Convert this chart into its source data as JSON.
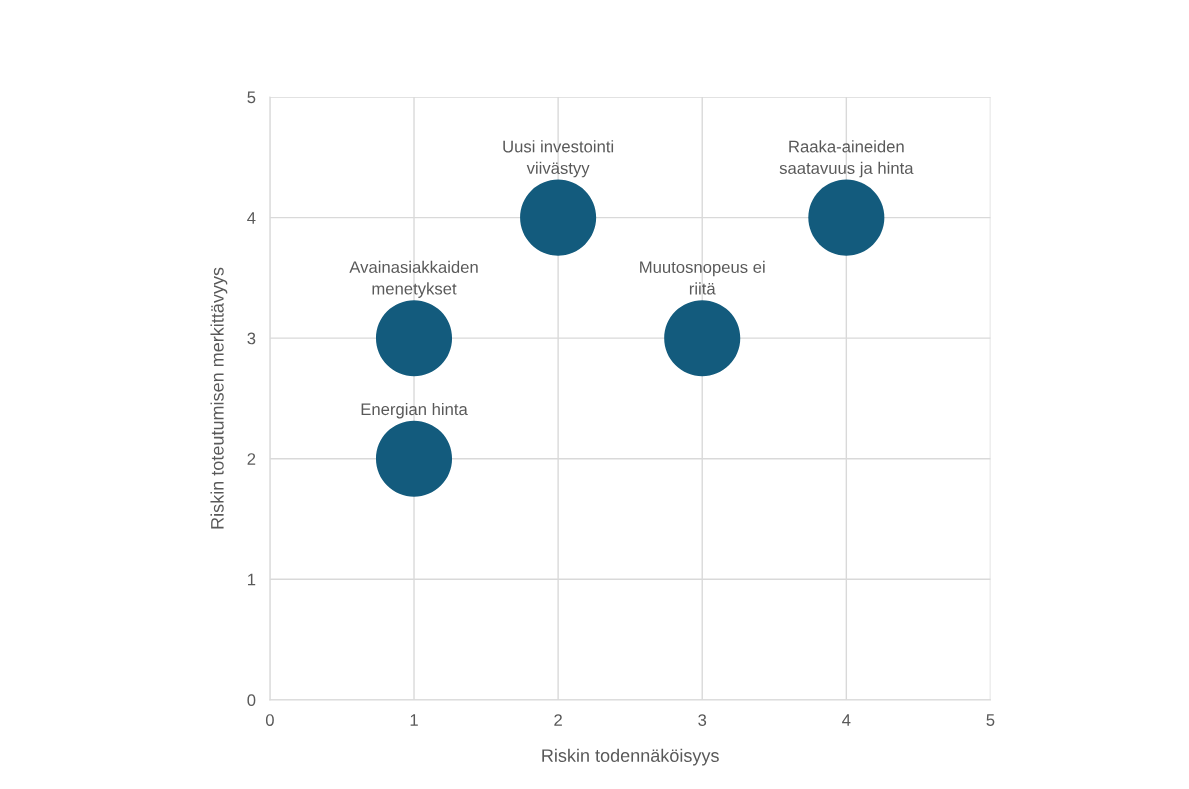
{
  "chart_data": {
    "type": "bubble",
    "xlabel": "Riskin todennäköisyys",
    "ylabel": "Riskin toteutumisen merkittävyys",
    "x": [
      1,
      1,
      2,
      3,
      4
    ],
    "values": [
      3,
      2,
      4,
      3,
      4
    ],
    "sizes": [
      1,
      1,
      1,
      1,
      1
    ],
    "color": "#135b7d",
    "xlim": [
      0,
      5
    ],
    "xticks": [
      0,
      1,
      2,
      3,
      4,
      5
    ],
    "ylim": [
      0,
      5
    ],
    "yticks": [
      0,
      1,
      2,
      3,
      4,
      5
    ],
    "grid": true,
    "annotations": [
      {
        "text": "Avainasiakkaiden\nmenetykset",
        "x": 1,
        "y": 3
      },
      {
        "text": "Energian hinta",
        "x": 1,
        "y": 2
      },
      {
        "text": "Uusi investointi\nviivästyy",
        "x": 2,
        "y": 4
      },
      {
        "text": "Muutosnopeus ei\nriitä",
        "x": 3,
        "y": 3
      },
      {
        "text": "Raaka-aineiden\nsaatavuus ja hinta",
        "x": 4,
        "y": 4
      }
    ]
  }
}
